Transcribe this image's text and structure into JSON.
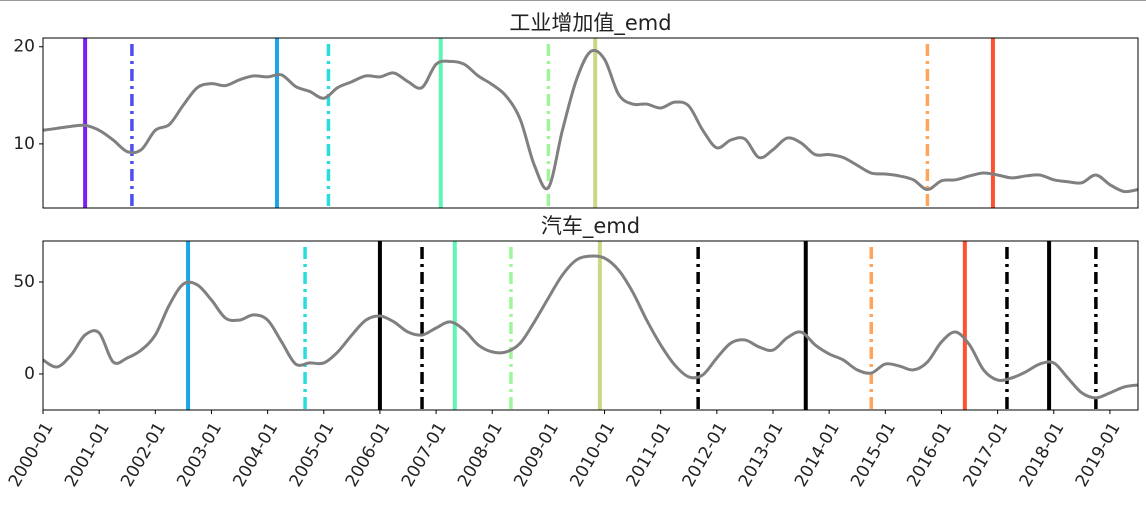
{
  "chart_data": [
    {
      "type": "line",
      "title": "工业增加值_emd",
      "x": [
        "2000-01",
        "2000-04",
        "2000-07",
        "2000-10",
        "2001-01",
        "2001-04",
        "2001-07",
        "2001-10",
        "2002-01",
        "2002-04",
        "2002-07",
        "2002-10",
        "2003-01",
        "2003-04",
        "2003-07",
        "2003-10",
        "2004-01",
        "2004-04",
        "2004-07",
        "2004-10",
        "2005-01",
        "2005-04",
        "2005-07",
        "2005-10",
        "2006-01",
        "2006-04",
        "2006-07",
        "2006-10",
        "2007-01",
        "2007-04",
        "2007-07",
        "2007-10",
        "2008-01",
        "2008-04",
        "2008-07",
        "2008-10",
        "2009-01",
        "2009-04",
        "2009-07",
        "2009-10",
        "2010-01",
        "2010-04",
        "2010-07",
        "2010-10",
        "2011-01",
        "2011-04",
        "2011-07",
        "2011-10",
        "2012-01",
        "2012-04",
        "2012-07",
        "2012-10",
        "2013-01",
        "2013-04",
        "2013-07",
        "2013-10",
        "2014-01",
        "2014-04",
        "2014-07",
        "2014-10",
        "2015-01",
        "2015-04",
        "2015-07",
        "2015-10",
        "2016-01",
        "2016-04",
        "2016-07",
        "2016-10",
        "2017-01",
        "2017-04",
        "2017-07",
        "2017-10",
        "2018-01",
        "2018-04",
        "2018-07",
        "2018-10",
        "2019-01",
        "2019-04",
        "2019-07"
      ],
      "series": [
        {
          "color": "#808080",
          "values": [
            11.4,
            11.6,
            11.8,
            11.9,
            11.4,
            10.4,
            9.2,
            9.4,
            11.4,
            12.0,
            14.0,
            15.8,
            16.2,
            16.0,
            16.6,
            17.0,
            16.9,
            17.1,
            15.9,
            15.4,
            14.7,
            15.8,
            16.4,
            17.0,
            16.9,
            17.3,
            16.4,
            15.8,
            18.2,
            18.5,
            18.2,
            17.0,
            16.1,
            14.9,
            12.5,
            7.8,
            5.5,
            11.4,
            16.6,
            19.5,
            18.7,
            15.1,
            14.1,
            14.1,
            13.7,
            14.3,
            13.9,
            11.4,
            9.6,
            10.4,
            10.5,
            8.6,
            9.4,
            10.6,
            10.1,
            8.9,
            8.9,
            8.6,
            7.8,
            7.0,
            6.9,
            6.7,
            6.3,
            5.3,
            6.2,
            6.3,
            6.7,
            7.0,
            6.8,
            6.5,
            6.7,
            6.8,
            6.3,
            6.1,
            6.0,
            6.8,
            5.8,
            5.1,
            5.3
          ]
        }
      ],
      "xlim": [
        "2000-01",
        "2019-07"
      ],
      "ylim": [
        3.4,
        20.9
      ],
      "yticks": [
        10,
        20
      ],
      "markers": [
        {
          "x": "2000-10",
          "color": "#7b1ff5",
          "style": "solid"
        },
        {
          "x": "2001-08",
          "color": "#4d4df2",
          "style": "dashdot"
        },
        {
          "x": "2004-03",
          "color": "#1ba6e8",
          "style": "solid"
        },
        {
          "x": "2005-02",
          "color": "#2adcdc",
          "style": "dashdot"
        },
        {
          "x": "2007-02",
          "color": "#5ff5b3",
          "style": "solid"
        },
        {
          "x": "2009-01",
          "color": "#a0f59a",
          "style": "dashdot"
        },
        {
          "x": "2009-11",
          "color": "#c8d884",
          "style": "solid"
        },
        {
          "x": "2015-10",
          "color": "#ffa45c",
          "style": "dashdot"
        },
        {
          "x": "2016-12",
          "color": "#ff5030",
          "style": "solid"
        }
      ]
    },
    {
      "type": "line",
      "title": "汽车_emd",
      "x": [
        "2000-01",
        "2000-04",
        "2000-07",
        "2000-10",
        "2001-01",
        "2001-04",
        "2001-07",
        "2001-10",
        "2002-01",
        "2002-04",
        "2002-07",
        "2002-10",
        "2003-01",
        "2003-04",
        "2003-07",
        "2003-10",
        "2004-01",
        "2004-04",
        "2004-07",
        "2004-10",
        "2005-01",
        "2005-04",
        "2005-07",
        "2005-10",
        "2006-01",
        "2006-04",
        "2006-07",
        "2006-10",
        "2007-01",
        "2007-04",
        "2007-07",
        "2007-10",
        "2008-01",
        "2008-04",
        "2008-07",
        "2008-10",
        "2009-01",
        "2009-04",
        "2009-07",
        "2009-10",
        "2010-01",
        "2010-04",
        "2010-07",
        "2010-10",
        "2011-01",
        "2011-04",
        "2011-07",
        "2011-10",
        "2012-01",
        "2012-04",
        "2012-07",
        "2012-10",
        "2013-01",
        "2013-04",
        "2013-07",
        "2013-10",
        "2014-01",
        "2014-04",
        "2014-07",
        "2014-10",
        "2015-01",
        "2015-04",
        "2015-07",
        "2015-10",
        "2016-01",
        "2016-04",
        "2016-07",
        "2016-10",
        "2017-01",
        "2017-04",
        "2017-07",
        "2017-10",
        "2018-01",
        "2018-04",
        "2018-07",
        "2018-10",
        "2019-01",
        "2019-04",
        "2019-07"
      ],
      "series": [
        {
          "color": "#808080",
          "values": [
            7.6,
            3.8,
            10.3,
            21.2,
            22.3,
            6.5,
            8.7,
            13.0,
            21.2,
            37.5,
            48.9,
            48.4,
            40.2,
            30.4,
            29.3,
            32.1,
            29.3,
            17.4,
            5.4,
            6.0,
            6.0,
            12.0,
            21.2,
            29.3,
            31.5,
            28.3,
            22.8,
            21.2,
            25.0,
            28.3,
            23.9,
            15.8,
            12.0,
            12.0,
            16.8,
            28.3,
            41.3,
            53.8,
            62.0,
            64.1,
            63.0,
            56.5,
            44.6,
            29.3,
            15.8,
            4.9,
            -1.6,
            -0.5,
            8.7,
            16.8,
            18.5,
            14.7,
            13.0,
            19.6,
            22.8,
            15.8,
            10.9,
            7.6,
            2.2,
            0.5,
            5.4,
            4.3,
            2.2,
            6.5,
            17.4,
            22.8,
            15.8,
            2.2,
            -3.3,
            -2.2,
            1.1,
            5.4,
            6.0,
            -2.2,
            -10.3,
            -13.0,
            -10.3,
            -7.1,
            -6.0
          ]
        }
      ],
      "xlim": [
        "2000-01",
        "2019-07"
      ],
      "xticks": [
        "2000-01",
        "2001-01",
        "2002-01",
        "2003-01",
        "2004-01",
        "2005-01",
        "2006-01",
        "2007-01",
        "2008-01",
        "2009-01",
        "2010-01",
        "2011-01",
        "2012-01",
        "2013-01",
        "2014-01",
        "2015-01",
        "2016-01",
        "2017-01",
        "2018-01",
        "2019-01"
      ],
      "ylim": [
        -19.6,
        72.3
      ],
      "yticks": [
        0,
        50
      ],
      "markers": [
        {
          "x": "2002-08",
          "color": "#1ba6e8",
          "style": "solid"
        },
        {
          "x": "2004-09",
          "color": "#2adcdc",
          "style": "dashdot"
        },
        {
          "x": "2006-01",
          "color": "#000000",
          "style": "solid"
        },
        {
          "x": "2006-10",
          "color": "#000000",
          "style": "dashdot"
        },
        {
          "x": "2007-05",
          "color": "#5ff5b3",
          "style": "solid"
        },
        {
          "x": "2008-05",
          "color": "#a0f59a",
          "style": "dashdot"
        },
        {
          "x": "2009-12",
          "color": "#c8d884",
          "style": "solid"
        },
        {
          "x": "2011-09",
          "color": "#000000",
          "style": "dashdot"
        },
        {
          "x": "2013-08",
          "color": "#000000",
          "style": "solid"
        },
        {
          "x": "2014-10",
          "color": "#ffa45c",
          "style": "dashdot"
        },
        {
          "x": "2016-06",
          "color": "#ff5030",
          "style": "solid"
        },
        {
          "x": "2017-03",
          "color": "#000000",
          "style": "dashdot"
        },
        {
          "x": "2017-12",
          "color": "#000000",
          "style": "solid"
        },
        {
          "x": "2018-10",
          "color": "#000000",
          "style": "dashdot"
        }
      ]
    }
  ]
}
